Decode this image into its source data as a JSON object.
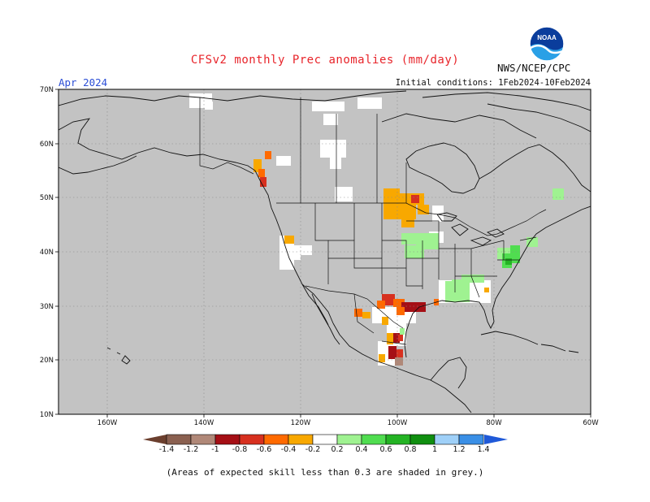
{
  "header": {
    "title": "CFSv2 monthly Prec anomalies (mm/day)",
    "org": "NWS/NCEP/CPC",
    "month": "Apr 2024",
    "initial_conditions": "Initial conditions: 1Feb2024-10Feb2024",
    "logo_text": "NOAA"
  },
  "footer": {
    "note": "(Areas of expected skill less than 0.3 are shaded in grey.)"
  },
  "map": {
    "lat_labels": [
      "70N",
      "60N",
      "50N",
      "40N",
      "30N",
      "20N",
      "10N"
    ],
    "lon_labels": [
      "160W",
      "140W",
      "120W",
      "100W",
      "80W",
      "60W"
    ],
    "background_color": "#c3c3c3",
    "grid": true
  },
  "colorbar": {
    "labels": [
      "-1.4",
      "-1.2",
      "-1",
      "-0.8",
      "-0.6",
      "-0.4",
      "-0.2",
      "0.2",
      "0.4",
      "0.6",
      "0.8",
      "1",
      "1.2",
      "1.4"
    ],
    "colors": [
      "#6b3f2e",
      "#8a6050",
      "#b08878",
      "#a50f15",
      "#d7301f",
      "#ff6a00",
      "#f8a800",
      "#ffffff",
      "#9ff291",
      "#50dd50",
      "#24b324",
      "#108f10",
      "#9fd0f8",
      "#3a8fe6",
      "#1f59d8"
    ]
  }
}
